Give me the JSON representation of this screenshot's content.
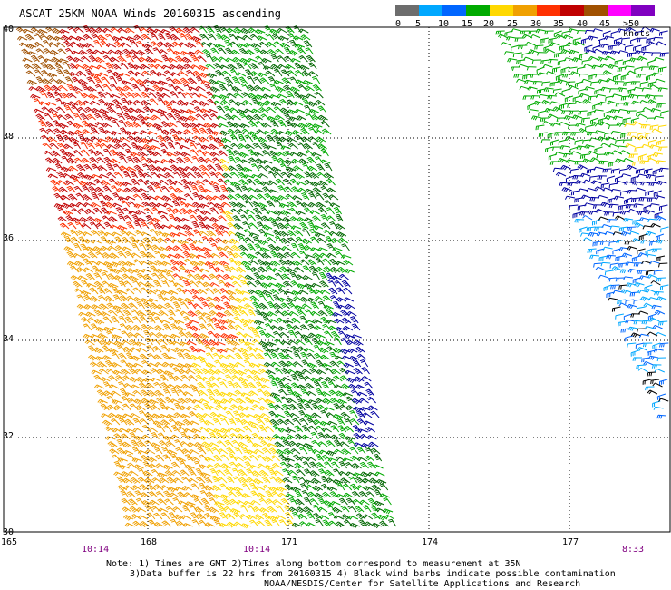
{
  "title": "ASCAT 25KM NOAA Winds 20160315 ascending",
  "legend": {
    "ticks": [
      "0",
      "5",
      "10",
      "15",
      "20",
      "25",
      "30",
      "35",
      "40",
      "45",
      ">50 knots"
    ],
    "colors": [
      "#6d6d6d",
      "#00a8ff",
      "#0066ff",
      "#00aa00",
      "#ffd800",
      "#f0a000",
      "#ff3000",
      "#c00000",
      "#a05000",
      "#ff00ff",
      "#8000c0"
    ]
  },
  "axes": {
    "y_labels": [
      "40",
      "38",
      "36",
      "34",
      "32",
      "30"
    ],
    "x_labels": [
      "165",
      "168",
      "171",
      "174",
      "177"
    ]
  },
  "times": [
    "10:14",
    "10:14",
    "8:33"
  ],
  "notes": {
    "line1": "Note: 1) Times are GMT 2)Times along bottom correspond to measurement at 35N",
    "line2": "3)Data buffer is 22 hrs from 20160315 4) Black wind barbs indicate possible contamination",
    "line3": "NOAA/NESDIS/Center for Satellite Applications and Research"
  },
  "swaths": {
    "left_colors": [
      "#a05000",
      "#c00000",
      "#ff3000",
      "#f0a000",
      "#ffd800",
      "#00aa00",
      "#006600",
      "#0000a0"
    ],
    "right_colors": [
      "#00aa00",
      "#0000a0",
      "#00a8ff",
      "#0066ff",
      "#000000",
      "#ffd800"
    ]
  }
}
